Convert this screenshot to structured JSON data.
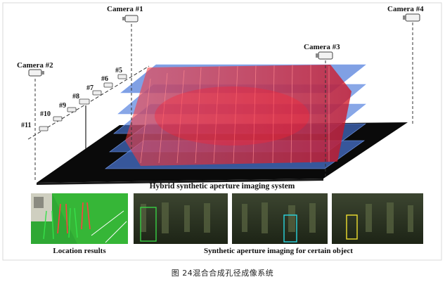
{
  "cameras": {
    "c1": "Camera #1",
    "c2": "Camera #2",
    "c3": "Camera #3",
    "c4": "Camera #4"
  },
  "array_cameras": [
    "#5",
    "#6",
    "#7",
    "#8",
    "#9",
    "#10",
    "#11"
  ],
  "system_label": "Hybrid synthetic aperture imaging system",
  "panels": {
    "location_label": "Location results",
    "synthetic_label": "Synthetic aperture imaging for certain object"
  },
  "caption": "图 24混合合成孔径成像系统",
  "colors": {
    "floor": "#0a0a0a",
    "blue_plane": "#4a78d8",
    "red_plane": "#ee2030",
    "panel_bg": "#2b3320",
    "location_green": "#2fa834",
    "box_green": "#38d044",
    "box_cyan": "#2ad6e0",
    "box_yellow": "#f0e030"
  }
}
